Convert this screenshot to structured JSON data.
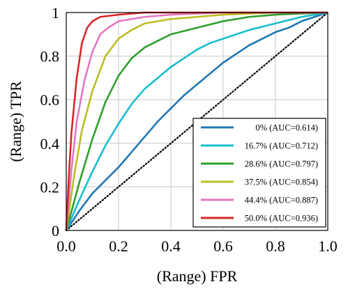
{
  "chart_data": {
    "type": "line",
    "title": "",
    "xlabel": "(Range) FPR",
    "ylabel": "(Range) TPR",
    "xlim": [
      0,
      1
    ],
    "ylim": [
      0,
      1
    ],
    "grid": true,
    "legend_position": "bottom-right",
    "x_ticks": [
      "0.0",
      "0.2",
      "0.4",
      "0.6",
      "0.8",
      "1.0"
    ],
    "y_ticks": [
      "0",
      "0.2",
      "0.4",
      "0.6",
      "0.8",
      "1"
    ],
    "diagonal": {
      "style": "dotted",
      "color": "#000000",
      "points": [
        [
          0,
          0
        ],
        [
          1,
          1
        ]
      ]
    },
    "series": [
      {
        "name": "0% (AUC=0.614)",
        "color": "#1f77b4",
        "points": [
          [
            0,
            0
          ],
          [
            0.05,
            0.09
          ],
          [
            0.1,
            0.17
          ],
          [
            0.15,
            0.23
          ],
          [
            0.2,
            0.29
          ],
          [
            0.25,
            0.36
          ],
          [
            0.3,
            0.43
          ],
          [
            0.35,
            0.5
          ],
          [
            0.4,
            0.56
          ],
          [
            0.45,
            0.62
          ],
          [
            0.5,
            0.67
          ],
          [
            0.55,
            0.72
          ],
          [
            0.6,
            0.77
          ],
          [
            0.65,
            0.81
          ],
          [
            0.7,
            0.85
          ],
          [
            0.75,
            0.88
          ],
          [
            0.8,
            0.91
          ],
          [
            0.85,
            0.93
          ],
          [
            0.9,
            0.96
          ],
          [
            0.95,
            0.98
          ],
          [
            1,
            1
          ]
        ]
      },
      {
        "name": "16.7% (AUC=0.712)",
        "color": "#17becf",
        "points": [
          [
            0,
            0
          ],
          [
            0.05,
            0.14
          ],
          [
            0.1,
            0.27
          ],
          [
            0.15,
            0.39
          ],
          [
            0.2,
            0.49
          ],
          [
            0.25,
            0.58
          ],
          [
            0.3,
            0.65
          ],
          [
            0.35,
            0.7
          ],
          [
            0.4,
            0.75
          ],
          [
            0.45,
            0.79
          ],
          [
            0.5,
            0.83
          ],
          [
            0.55,
            0.86
          ],
          [
            0.6,
            0.88
          ],
          [
            0.65,
            0.9
          ],
          [
            0.7,
            0.92
          ],
          [
            0.8,
            0.95
          ],
          [
            0.9,
            0.98
          ],
          [
            1,
            1
          ]
        ]
      },
      {
        "name": "28.6% (AUC=0.797)",
        "color": "#2ca02c",
        "points": [
          [
            0,
            0
          ],
          [
            0.05,
            0.22
          ],
          [
            0.1,
            0.42
          ],
          [
            0.15,
            0.59
          ],
          [
            0.2,
            0.71
          ],
          [
            0.25,
            0.79
          ],
          [
            0.3,
            0.84
          ],
          [
            0.35,
            0.87
          ],
          [
            0.4,
            0.9
          ],
          [
            0.5,
            0.93
          ],
          [
            0.6,
            0.96
          ],
          [
            0.7,
            0.98
          ],
          [
            0.8,
            0.99
          ],
          [
            1,
            1
          ]
        ]
      },
      {
        "name": "37.5% (AUC=0.854)",
        "color": "#bcbd22",
        "points": [
          [
            0,
            0
          ],
          [
            0.03,
            0.25
          ],
          [
            0.06,
            0.46
          ],
          [
            0.1,
            0.64
          ],
          [
            0.15,
            0.8
          ],
          [
            0.2,
            0.88
          ],
          [
            0.25,
            0.92
          ],
          [
            0.3,
            0.95
          ],
          [
            0.4,
            0.97
          ],
          [
            0.5,
            0.98
          ],
          [
            0.6,
            0.99
          ],
          [
            0.8,
            1.0
          ],
          [
            1,
            1
          ]
        ]
      },
      {
        "name": "44.4% (AUC=0.887)",
        "color": "#e377c2",
        "points": [
          [
            0,
            0
          ],
          [
            0.02,
            0.28
          ],
          [
            0.04,
            0.5
          ],
          [
            0.07,
            0.69
          ],
          [
            0.1,
            0.82
          ],
          [
            0.13,
            0.9
          ],
          [
            0.16,
            0.93
          ],
          [
            0.2,
            0.96
          ],
          [
            0.3,
            0.98
          ],
          [
            0.4,
            0.99
          ],
          [
            0.6,
            1.0
          ],
          [
            1,
            1
          ]
        ]
      },
      {
        "name": "50.0% (AUC=0.936)",
        "color": "#d62728",
        "points": [
          [
            0,
            0
          ],
          [
            0.01,
            0.25
          ],
          [
            0.02,
            0.45
          ],
          [
            0.04,
            0.7
          ],
          [
            0.06,
            0.86
          ],
          [
            0.08,
            0.93
          ],
          [
            0.1,
            0.96
          ],
          [
            0.13,
            0.98
          ],
          [
            0.2,
            0.99
          ],
          [
            0.3,
            1.0
          ],
          [
            1,
            1
          ]
        ]
      }
    ]
  }
}
